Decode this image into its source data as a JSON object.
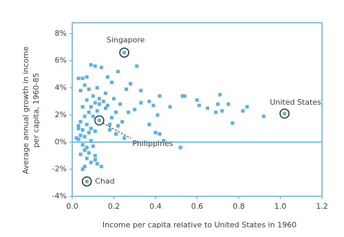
{
  "chart_data": {
    "type": "scatter",
    "xlabel": "Income per capita relative to United States in 1960",
    "ylabel": [
      "Average annual growth in income",
      "per capita, 1960-85"
    ],
    "xlim": [
      0,
      1.2
    ],
    "ylim": [
      -4,
      8.8
    ],
    "xticks": [
      {
        "value": 0,
        "label": "0.0"
      },
      0.2,
      0.4,
      0.6,
      0.8,
      {
        "value": 1,
        "label": "1.0"
      },
      1.2
    ],
    "yticks": [
      {
        "value": -4,
        "label": "-4%"
      },
      {
        "value": -2,
        "label": "-2%"
      },
      {
        "value": 0,
        "label": "0%"
      },
      {
        "value": 2,
        "label": "2%"
      },
      {
        "value": 4,
        "label": "4%"
      },
      {
        "value": 6,
        "label": "6%"
      },
      {
        "value": 8,
        "label": "8%"
      }
    ],
    "zero_line": true,
    "series": [
      {
        "color": "#5bb0dc",
        "x": [
          0.03,
          0.05,
          0.07,
          0.09,
          0.11,
          0.14,
          0.06,
          0.04,
          0.08,
          0.12,
          0.1,
          0.13,
          0.07,
          0.15,
          0.05,
          0.09,
          0.11,
          0.16,
          0.12,
          0.08,
          0.06,
          0.1,
          0.04,
          0.03,
          0.07,
          0.09,
          0.05,
          0.08,
          0.11,
          0.04,
          0.06,
          0.03,
          0.09,
          0.05,
          0.07,
          0.1,
          0.06,
          0.08,
          0.04,
          0.11,
          0.07,
          0.09,
          0.12,
          0.14,
          0.06,
          0.05,
          0.11,
          0.03,
          0.02,
          0.17,
          0.19,
          0.22,
          0.26,
          0.31,
          0.33,
          0.2,
          0.23,
          0.17,
          0.21,
          0.19,
          0.24,
          0.22,
          0.18,
          0.21,
          0.25,
          0.27,
          0.3,
          0.33,
          0.37,
          0.39,
          0.42,
          0.41,
          0.37,
          0.4,
          0.42,
          0.44,
          0.47,
          0.53,
          0.54,
          0.52,
          0.6,
          0.61,
          0.65,
          0.7,
          0.71,
          0.72,
          0.69,
          0.75,
          0.77,
          0.82,
          0.84,
          0.92,
          0.16,
          0.13,
          0.18,
          0.28
        ],
        "y": [
          4.7,
          4.7,
          4.8,
          5.7,
          5.6,
          5.5,
          4.2,
          3.8,
          3.9,
          4.0,
          3.4,
          3.2,
          3.1,
          3.0,
          2.6,
          2.6,
          2.9,
          2.5,
          2.3,
          2.2,
          1.9,
          1.9,
          1.5,
          1.2,
          1.3,
          1.0,
          0.9,
          0.7,
          0.8,
          0.5,
          0.4,
          0.2,
          0.1,
          -0.2,
          -0.4,
          -0.3,
          -0.6,
          -0.8,
          -0.9,
          -1.0,
          -1.2,
          -1.5,
          -1.6,
          -1.8,
          -1.8,
          -2.0,
          -1.3,
          1.0,
          0.3,
          4.8,
          4.4,
          5.2,
          3.9,
          5.6,
          3.8,
          3.2,
          2.8,
          2.7,
          2.2,
          1.8,
          1.5,
          1.2,
          0.9,
          0.6,
          0.3,
          2.2,
          2.4,
          2.9,
          3.0,
          2.7,
          3.4,
          2.0,
          1.3,
          0.7,
          0.6,
          0.1,
          2.6,
          3.4,
          3.4,
          -0.4,
          3.1,
          2.7,
          2.5,
          2.8,
          3.5,
          2.3,
          2.2,
          2.8,
          1.4,
          2.3,
          2.6,
          1.9,
          3.6,
          2.8,
          1.3,
          4.3
        ]
      }
    ],
    "annotations": [
      {
        "text": "Singapore",
        "x": 0.25,
        "y": 6.6
      },
      {
        "text": "United States",
        "x": 1.02,
        "y": 2.1
      },
      {
        "text": "Chad",
        "x": 0.07,
        "y": -2.9
      },
      {
        "text": "Philippines",
        "x": 0.13,
        "y": 1.6
      }
    ]
  }
}
